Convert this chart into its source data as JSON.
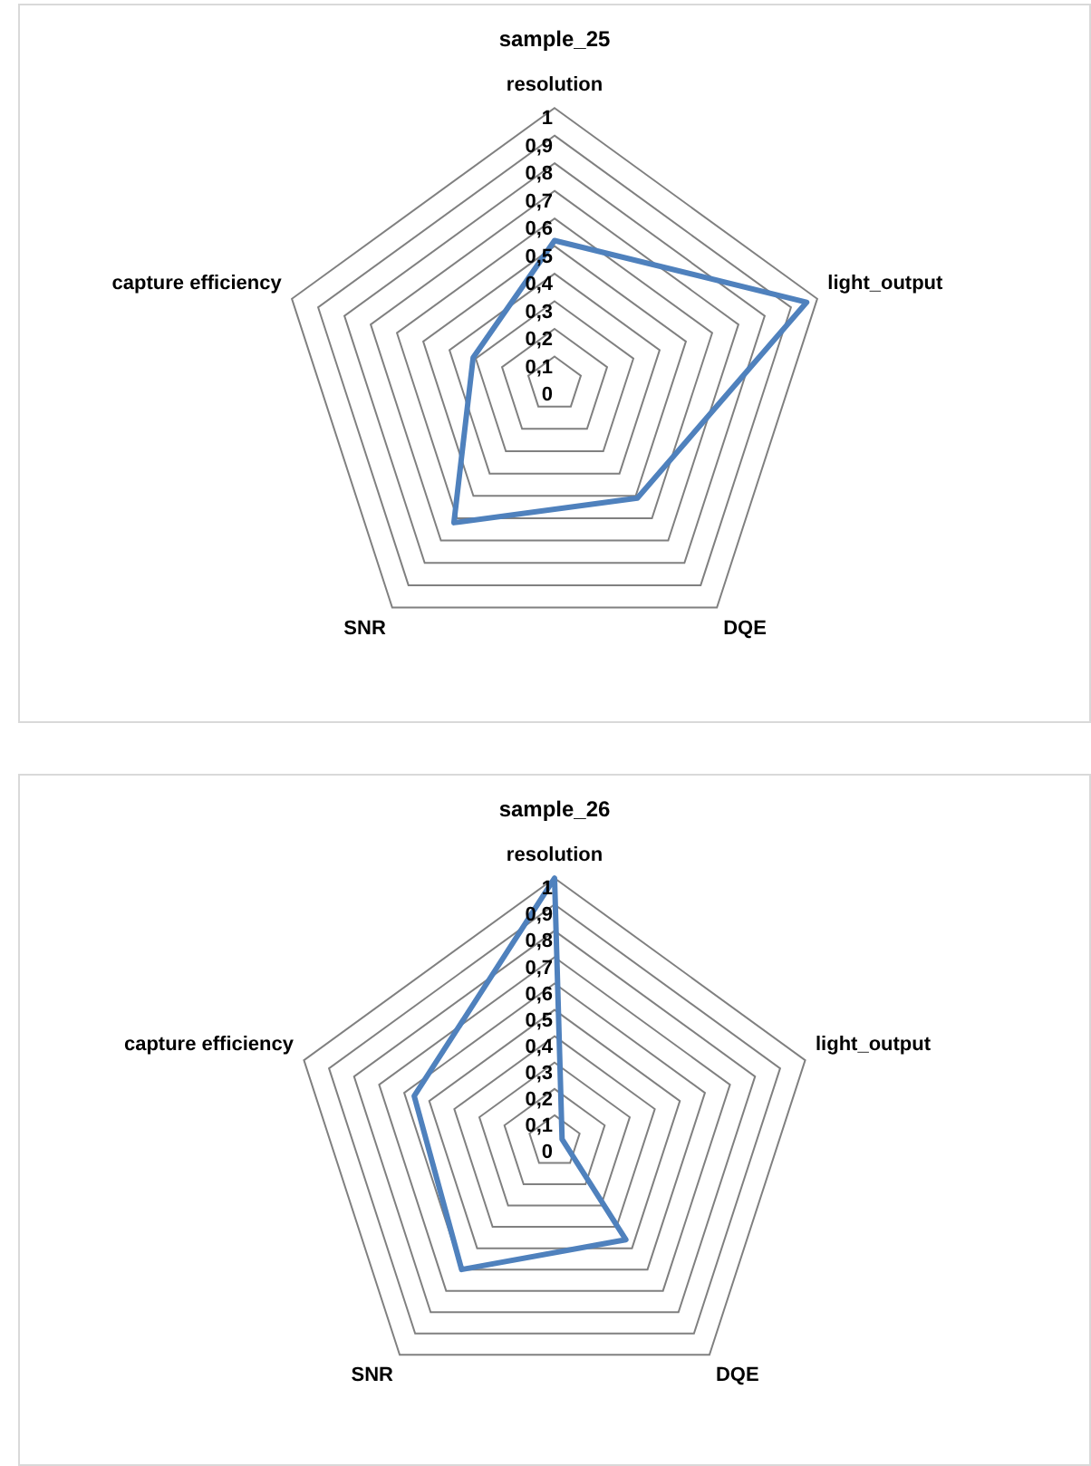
{
  "chart_data": [
    {
      "type": "radar",
      "title": "sample_25",
      "categories": [
        "resolution",
        "light_output",
        "DQE",
        "SNR",
        "capture efficiency"
      ],
      "series": [
        {
          "color": "#4f81bd",
          "values": [
            0.52,
            0.96,
            0.51,
            0.62,
            0.31
          ]
        }
      ],
      "ylim": [
        0,
        1
      ],
      "yticks": [
        {
          "value": 0,
          "label": "0"
        },
        {
          "value": 0.1,
          "label": "0,1"
        },
        {
          "value": 0.2,
          "label": "0,2"
        },
        {
          "value": 0.3,
          "label": "0,3"
        },
        {
          "value": 0.4,
          "label": "0,4"
        },
        {
          "value": 0.5,
          "label": "0,5"
        },
        {
          "value": 0.6,
          "label": "0,6"
        },
        {
          "value": 0.7,
          "label": "0,7"
        },
        {
          "value": 0.8,
          "label": "0,8"
        },
        {
          "value": 0.9,
          "label": "0,9"
        },
        {
          "value": 1,
          "label": "1"
        }
      ],
      "grid": true,
      "marker": "none",
      "line_style": "solid",
      "legend": false
    },
    {
      "type": "radar",
      "title": "sample_26",
      "categories": [
        "resolution",
        "light_output",
        "DQE",
        "SNR",
        "capture efficiency"
      ],
      "series": [
        {
          "color": "#4f81bd",
          "values": [
            1,
            0.03,
            0.46,
            0.6,
            0.56
          ]
        }
      ],
      "ylim": [
        0,
        1
      ],
      "yticks": [
        {
          "value": 0,
          "label": "0"
        },
        {
          "value": 0.1,
          "label": "0,1"
        },
        {
          "value": 0.2,
          "label": "0,2"
        },
        {
          "value": 0.3,
          "label": "0,3"
        },
        {
          "value": 0.4,
          "label": "0,4"
        },
        {
          "value": 0.5,
          "label": "0,5"
        },
        {
          "value": 0.6,
          "label": "0,6"
        },
        {
          "value": 0.7,
          "label": "0,7"
        },
        {
          "value": 0.8,
          "label": "0,8"
        },
        {
          "value": 0.9,
          "label": "0,9"
        },
        {
          "value": 1,
          "label": "1"
        }
      ],
      "grid": true,
      "marker": "none",
      "line_style": "solid",
      "legend": false
    }
  ]
}
